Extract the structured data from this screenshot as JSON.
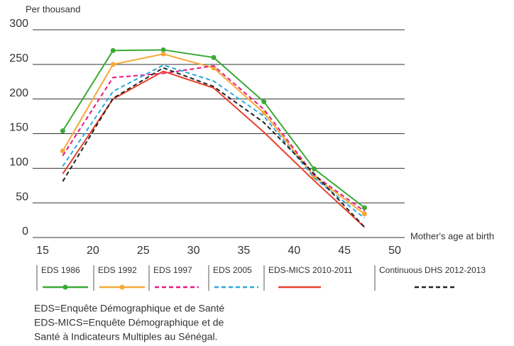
{
  "chart_data": {
    "type": "line",
    "y_label": "Per thousand",
    "x_label": "Mother's age at birth",
    "x": [
      17,
      22,
      27,
      32,
      37,
      42,
      47
    ],
    "xlim": [
      15,
      50
    ],
    "xticks": [
      15,
      20,
      25,
      30,
      35,
      40,
      45,
      50
    ],
    "ylim": [
      0,
      300
    ],
    "yticks": [
      0,
      50,
      100,
      150,
      200,
      250,
      300
    ],
    "grid": true,
    "series": [
      {
        "name": "EDS 1986",
        "color": "#3aaa35",
        "dashed": false,
        "markers": true,
        "values": [
          154,
          270,
          271,
          260,
          196,
          99,
          43
        ]
      },
      {
        "name": "EDS 1992",
        "color": "#f5a93a",
        "dashed": false,
        "markers": true,
        "values": [
          125,
          250,
          265,
          245,
          180,
          88,
          34
        ]
      },
      {
        "name": "EDS 1997",
        "color": "#e6197e",
        "dashed": true,
        "markers": false,
        "values": [
          118,
          231,
          237,
          248,
          185,
          90,
          38
        ]
      },
      {
        "name": "EDS 2005",
        "color": "#2aa8e0",
        "dashed": true,
        "markers": false,
        "values": [
          103,
          211,
          249,
          226,
          175,
          86,
          28
        ]
      },
      {
        "name": "EDS-MICS 2010-2011",
        "color": "#e8412c",
        "dashed": false,
        "markers": false,
        "values": [
          92,
          200,
          240,
          216,
          152,
          82,
          15
        ]
      },
      {
        "name": "Continuous DHS 2012-2013",
        "color": "#222222",
        "dashed": true,
        "markers": false,
        "values": [
          81,
          201,
          245,
          218,
          166,
          92,
          15
        ]
      }
    ],
    "notes": [
      "EDS=Enquête Démographique et de Santé",
      "EDS-MICS=Enquête Démographique et de",
      "Santé à Indicateurs Multiples au Sénégal."
    ]
  }
}
